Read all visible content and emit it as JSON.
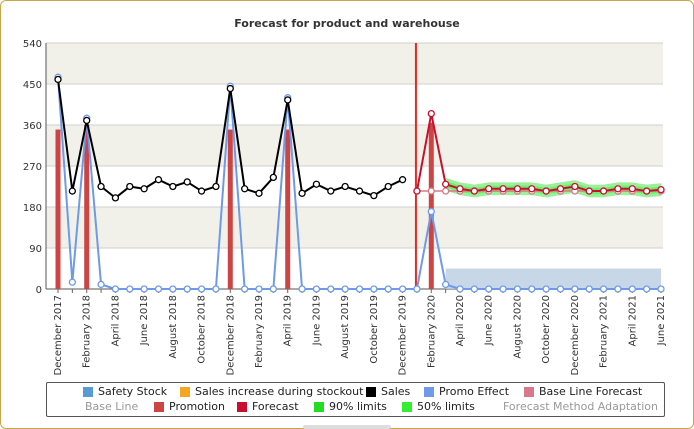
{
  "chart_data": {
    "type": "line",
    "title": "Forecast for product and warehouse",
    "ylim": [
      0,
      540
    ],
    "yticks": [
      0,
      90,
      180,
      270,
      360,
      450,
      540
    ],
    "x_labels": [
      "December 2017",
      "February 2018",
      "April 2018",
      "June 2018",
      "August 2018",
      "October 2018",
      "December 2018",
      "February 2019",
      "April 2019",
      "June 2019",
      "August 2019",
      "October 2019",
      "December 2019",
      "February 2020",
      "April 2020",
      "June 2020",
      "August 2020",
      "October 2020",
      "December 2020",
      "February 2021",
      "April 2021",
      "June 2021"
    ],
    "months": [
      "2017-12",
      "2018-01",
      "2018-02",
      "2018-03",
      "2018-04",
      "2018-05",
      "2018-06",
      "2018-07",
      "2018-08",
      "2018-09",
      "2018-10",
      "2018-11",
      "2018-12",
      "2019-01",
      "2019-02",
      "2019-03",
      "2019-04",
      "2019-05",
      "2019-06",
      "2019-07",
      "2019-08",
      "2019-09",
      "2019-10",
      "2019-11",
      "2019-12",
      "2020-01",
      "2020-02",
      "2020-03",
      "2020-04",
      "2020-05",
      "2020-06",
      "2020-07",
      "2020-08",
      "2020-09",
      "2020-10",
      "2020-11",
      "2020-12",
      "2021-01",
      "2021-02",
      "2021-03",
      "2021-04",
      "2021-05",
      "2021-06"
    ],
    "forecast_start": "2020-01",
    "series": [
      {
        "name": "Sales",
        "color": "#000000",
        "values": [
          460,
          215,
          370,
          225,
          200,
          225,
          220,
          240,
          225,
          235,
          215,
          225,
          440,
          220,
          210,
          245,
          415,
          210,
          230,
          215,
          225,
          215,
          205,
          225,
          240,
          null,
          null,
          null,
          null,
          null,
          null,
          null,
          null,
          null,
          null,
          null,
          null,
          null,
          null,
          null,
          null,
          null,
          null
        ]
      },
      {
        "name": "Promo Effect",
        "color": "#6f9ae8",
        "values": [
          465,
          15,
          375,
          10,
          0,
          0,
          0,
          0,
          0,
          0,
          0,
          0,
          445,
          0,
          0,
          0,
          420,
          0,
          0,
          0,
          0,
          0,
          0,
          0,
          0,
          0,
          170,
          10,
          0,
          0,
          0,
          0,
          0,
          0,
          0,
          0,
          0,
          0,
          0,
          0,
          0,
          0,
          0
        ]
      },
      {
        "name": "Promotion",
        "color": "#cc4444",
        "values": [
          350,
          0,
          360,
          0,
          0,
          0,
          0,
          0,
          0,
          0,
          0,
          0,
          350,
          0,
          0,
          0,
          350,
          0,
          0,
          0,
          0,
          0,
          0,
          0,
          0,
          0,
          365,
          0,
          0,
          0,
          0,
          0,
          0,
          0,
          0,
          0,
          0,
          0,
          0,
          0,
          0,
          0,
          0
        ]
      },
      {
        "name": "Forecast",
        "color": "#c8102e",
        "values": [
          null,
          null,
          null,
          null,
          null,
          null,
          null,
          null,
          null,
          null,
          null,
          null,
          null,
          null,
          null,
          null,
          null,
          null,
          null,
          null,
          null,
          null,
          null,
          null,
          null,
          215,
          385,
          230,
          220,
          215,
          220,
          220,
          220,
          220,
          215,
          220,
          225,
          215,
          215,
          220,
          220,
          215,
          218
        ]
      },
      {
        "name": "Base Line Forecast",
        "color": "#d9788a",
        "values": [
          null,
          null,
          null,
          null,
          null,
          null,
          null,
          null,
          null,
          null,
          null,
          null,
          null,
          null,
          null,
          null,
          null,
          null,
          null,
          null,
          null,
          null,
          null,
          null,
          null,
          215,
          215,
          215,
          215,
          215,
          215,
          215,
          215,
          215,
          215,
          215,
          215,
          215,
          215,
          215,
          215,
          215,
          215
        ]
      },
      {
        "name": "Safety Stock",
        "color": "#b9cde2",
        "values": [
          null,
          null,
          null,
          null,
          null,
          null,
          null,
          null,
          null,
          null,
          null,
          null,
          null,
          null,
          null,
          null,
          null,
          null,
          null,
          null,
          null,
          null,
          null,
          null,
          null,
          null,
          null,
          45,
          45,
          45,
          45,
          45,
          45,
          45,
          45,
          45,
          45,
          45,
          45,
          45,
          45,
          45,
          45
        ]
      }
    ],
    "band_half_width_90": 14,
    "band_half_width_50": 7,
    "grid": true
  },
  "legend": {
    "row1": [
      {
        "label": "Safety Stock",
        "color": "#5b9bd5",
        "active": true
      },
      {
        "label": "Sales increase during stockout",
        "color": "#f5a623",
        "active": true
      },
      {
        "label": "Sales",
        "color": "#000000",
        "active": true
      },
      {
        "label": "Promo Effect",
        "color": "#6f9ae8",
        "active": true
      },
      {
        "label": "Base Line Forecast",
        "color": "#d9788a",
        "active": true
      }
    ],
    "row2": [
      {
        "label": "Base Line",
        "color": "",
        "active": false
      },
      {
        "label": "Promotion",
        "color": "#cc4444",
        "active": true
      },
      {
        "label": "Forecast",
        "color": "#c8102e",
        "active": true
      },
      {
        "label": "90% limits",
        "color": "#22dd22",
        "active": true
      },
      {
        "label": "50% limits",
        "color": "#33ee33",
        "active": true
      },
      {
        "label": "Forecast Method Adaptation",
        "color": "",
        "active": false
      }
    ]
  }
}
